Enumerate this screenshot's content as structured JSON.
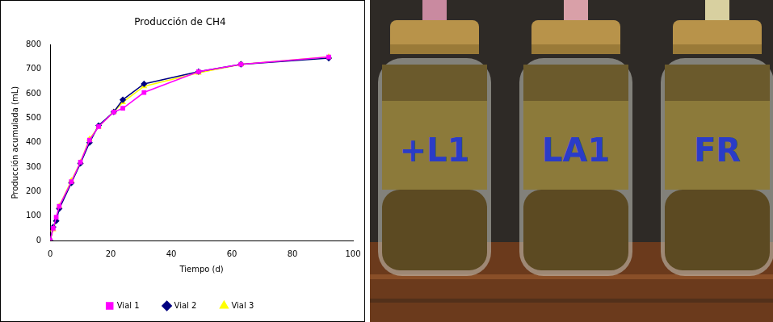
{
  "chart_data": {
    "type": "line",
    "title": "Producción de CH4",
    "x_label": "Tiempo (d)",
    "y_label": "Producción acumulada (mL)",
    "x": [
      0,
      1,
      2,
      3,
      7,
      10,
      13,
      16,
      21,
      24,
      31,
      49,
      63,
      92
    ],
    "series": [
      {
        "name": "Vial 1",
        "color": "#ff00ff",
        "marker": "square",
        "values": [
          0,
          50,
          95,
          140,
          240,
          320,
          410,
          465,
          525,
          540,
          605,
          690,
          720,
          750
        ]
      },
      {
        "name": "Vial 2",
        "color": "#000080",
        "marker": "diamond",
        "values": [
          0,
          55,
          80,
          130,
          235,
          315,
          400,
          470,
          525,
          575,
          640,
          690,
          720,
          745
        ]
      },
      {
        "name": "Vial 3",
        "color": "#ffff00",
        "marker": "triangle",
        "values": [
          0,
          45,
          85,
          140,
          245,
          320,
          415,
          465,
          525,
          565,
          630,
          685,
          720,
          750
        ]
      }
    ],
    "xlim": [
      0,
      100
    ],
    "xticks": [
      0,
      20,
      40,
      60,
      80,
      100
    ],
    "ylim": [
      0,
      800
    ],
    "yticks": [
      0,
      100,
      200,
      300,
      400,
      500,
      600,
      700,
      800
    ],
    "grid": false,
    "legend": "bottom"
  },
  "photo": {
    "labels": [
      "+L1",
      "LA1",
      "FR"
    ]
  }
}
